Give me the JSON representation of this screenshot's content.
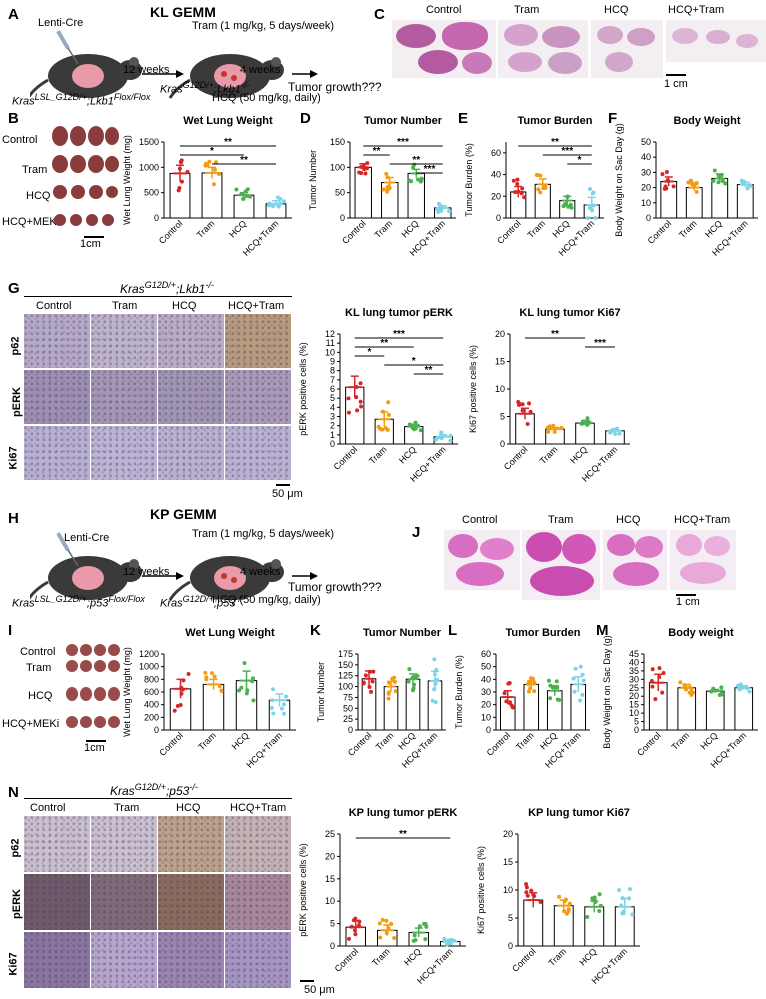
{
  "colors": {
    "control": "#d62728",
    "tram": "#f39c12",
    "hcq": "#4caf50",
    "hcq_tram": "#7fd3e8"
  },
  "panel_letters": [
    "A",
    "B",
    "C",
    "D",
    "E",
    "F",
    "G",
    "H",
    "I",
    "J",
    "K",
    "L",
    "M",
    "N"
  ],
  "kl": {
    "title": "KL GEMM",
    "lenti": "Lenti-Cre",
    "weeks12": "12 weeks",
    "tram_dose": "Tram (1 mg/kg, 5 days/week)",
    "weeks4": "4 weeks",
    "tumor_growth": "Tumor growth???",
    "genotype_left": "Kras",
    "genotype_left_sup": "LSL_G12D/+",
    "genotype_left_rest": ";Lkb1",
    "genotype_left_sup2": "Flox/Flox",
    "genotype_right": "Kras",
    "genotype_right_sup": "G12D/+",
    "genotype_right_rest": ";Lkb1",
    "genotype_right_sup2": "-/-",
    "hcq_dose": "HCQ (50 mg/kg, daily)",
    "photo_labels": [
      "Control",
      "Tram",
      "HCQ",
      "HCQ+MEKi"
    ],
    "scale_1cm": "1cm",
    "c_labels": [
      "Control",
      "Tram",
      "HCQ",
      "HCQ+Tram"
    ],
    "c_scale": "1 cm",
    "g_title_main": "Kras",
    "g_title_sup": "G12D/+",
    "g_title_rest": ";Lkb1",
    "g_title_sup2": "-/-",
    "g_cols": [
      "Control",
      "Tram",
      "HCQ",
      "HCQ+Tram"
    ],
    "g_rows": [
      "p62",
      "pERK",
      "Ki67"
    ],
    "g_scale": "50 μm"
  },
  "kp": {
    "title": "KP GEMM",
    "lenti": "Lenti-Cre",
    "weeks12": "12 weeks",
    "tram_dose": "Tram (1 mg/kg, 5 days/week)",
    "weeks4": "4 weeks",
    "tumor_growth": "Tumor growth???",
    "genotype_left": "Kras",
    "genotype_left_sup": "LSL_G12D/+",
    "genotype_left_rest": ";p53",
    "genotype_left_sup2": "Flox/Flox",
    "genotype_right": "Kras",
    "genotype_right_sup": "G12D/+",
    "genotype_right_rest": ";p53",
    "genotype_right_sup2": "-/-",
    "hcq_dose": "HCQ (50 mg/kg, daily)",
    "photo_labels": [
      "Control",
      "Tram",
      "HCQ",
      "HCQ+MEKi"
    ],
    "scale_1cm": "1cm",
    "j_labels": [
      "Control",
      "Tram",
      "HCQ",
      "HCQ+Tram"
    ],
    "j_scale": "1 cm",
    "n_title_main": "Kras",
    "n_title_sup": "G12D/+",
    "n_title_rest": ";p53",
    "n_title_sup2": "-/-",
    "n_cols": [
      "Control",
      "Tram",
      "HCQ",
      "HCQ+Tram"
    ],
    "n_rows": [
      "p62",
      "pERK",
      "Ki67"
    ],
    "n_scale": "50 μm"
  },
  "chart_data": [
    {
      "id": "B",
      "type": "bar",
      "title": "Wet Lung Weight",
      "ylabel": "Wet Lung Weight (mg)",
      "categories": [
        "Control",
        "Tram",
        "HCQ",
        "HCQ+Tram"
      ],
      "values": [
        880,
        890,
        450,
        280
      ],
      "errors": [
        160,
        110,
        50,
        60
      ],
      "ylim": [
        0,
        1500
      ],
      "yticks": [
        0,
        500,
        1000,
        1500
      ],
      "sig": [
        {
          "a": 0,
          "b": 3,
          "label": "**"
        },
        {
          "a": 0,
          "b": 2,
          "label": "*"
        },
        {
          "a": 1,
          "b": 3,
          "label": "**"
        }
      ]
    },
    {
      "id": "D",
      "type": "bar",
      "title": "Tumor Number",
      "ylabel": "Tumor Number",
      "categories": [
        "Control",
        "Tram",
        "HCQ",
        "HCQ+Tram"
      ],
      "values": [
        100,
        70,
        88,
        20
      ],
      "errors": [
        7,
        10,
        8,
        4
      ],
      "ylim": [
        0,
        150
      ],
      "yticks": [
        0,
        50,
        100,
        150
      ],
      "sig": [
        {
          "a": 0,
          "b": 3,
          "label": "***"
        },
        {
          "a": 0,
          "b": 1,
          "label": "**"
        },
        {
          "a": 1,
          "b": 3,
          "label": "**"
        },
        {
          "a": 2,
          "b": 3,
          "label": "***"
        }
      ]
    },
    {
      "id": "E",
      "type": "bar",
      "title": "Tumor Burden",
      "ylabel": "Tumor Burden (%)",
      "categories": [
        "Control",
        "Tram",
        "HCQ",
        "HCQ+Tram"
      ],
      "values": [
        24,
        31,
        16,
        12
      ],
      "errors": [
        5,
        5,
        4,
        7
      ],
      "ylim": [
        0,
        70
      ],
      "yticks": [
        0,
        20,
        40,
        60
      ],
      "sig": [
        {
          "a": 0,
          "b": 3,
          "label": "**"
        },
        {
          "a": 1,
          "b": 3,
          "label": "***"
        },
        {
          "a": 2,
          "b": 3,
          "label": "*"
        }
      ]
    },
    {
      "id": "F",
      "type": "bar",
      "title": "Body Weight",
      "ylabel": "Body Weight  on Sac Day (g)",
      "categories": [
        "Control",
        "Tram",
        "HCQ",
        "HCQ+Tram"
      ],
      "values": [
        24,
        20,
        26,
        22
      ],
      "errors": [
        3,
        2,
        3,
        1.5
      ],
      "ylim": [
        0,
        50
      ],
      "yticks": [
        0,
        10,
        20,
        30,
        40,
        50
      ],
      "sig": []
    },
    {
      "id": "G1",
      "type": "bar",
      "title": "KL lung tumor pERK",
      "ylabel": "pERK positive cells (%)",
      "categories": [
        "Control",
        "Tram",
        "HCQ",
        "HCQ+Tram"
      ],
      "values": [
        6.2,
        2.7,
        1.9,
        0.8
      ],
      "errors": [
        1.2,
        0.8,
        0.2,
        0.2
      ],
      "ylim": [
        0,
        12
      ],
      "yticks": [
        0,
        1,
        2,
        3,
        4,
        5,
        6,
        7,
        8,
        9,
        10,
        11,
        12
      ],
      "sig": [
        {
          "a": 0,
          "b": 3,
          "label": "***"
        },
        {
          "a": 0,
          "b": 2,
          "label": "**"
        },
        {
          "a": 0,
          "b": 1,
          "label": "*"
        },
        {
          "a": 1,
          "b": 3,
          "label": "*"
        },
        {
          "a": 2,
          "b": 3,
          "label": "**"
        }
      ]
    },
    {
      "id": "G2",
      "type": "bar",
      "title": "KL lung tumor Ki67",
      "ylabel": "Ki67 positive cells (%)",
      "categories": [
        "Control",
        "Tram",
        "HCQ",
        "HCQ+Tram"
      ],
      "values": [
        5.5,
        2.7,
        3.8,
        2.4
      ],
      "errors": [
        1,
        0.3,
        0.4,
        0.3
      ],
      "ylim": [
        0,
        20
      ],
      "yticks": [
        0,
        5,
        10,
        15,
        20
      ],
      "sig": [
        {
          "a": 0,
          "b": 2,
          "label": "**"
        },
        {
          "a": 2,
          "b": 3,
          "label": "***"
        }
      ]
    },
    {
      "id": "I",
      "type": "bar",
      "title": "Wet Lung Weight",
      "ylabel": "Wet Lung Weight (mg)",
      "categories": [
        "Control",
        "Tram",
        "HCQ",
        "HCQ+Tram"
      ],
      "values": [
        650,
        720,
        780,
        470
      ],
      "errors": [
        150,
        80,
        150,
        100
      ],
      "ylim": [
        0,
        1200
      ],
      "yticks": [
        0,
        200,
        400,
        600,
        800,
        1000,
        1200
      ],
      "sig": []
    },
    {
      "id": "K",
      "type": "bar",
      "title": "Tumor Number",
      "ylabel": "Tumor Number",
      "categories": [
        "Control",
        "Tram",
        "HCQ",
        "HCQ+Tram"
      ],
      "values": [
        118,
        100,
        117,
        113
      ],
      "errors": [
        18,
        12,
        12,
        22
      ],
      "ylim": [
        0,
        175
      ],
      "yticks": [
        0,
        25,
        50,
        75,
        100,
        125,
        150,
        175
      ],
      "sig": []
    },
    {
      "id": "L",
      "type": "bar",
      "title": "Tumor Burden",
      "ylabel": "Tumor Burden (%)",
      "categories": [
        "Control",
        "Tram",
        "HCQ",
        "HCQ+Tram"
      ],
      "values": [
        26,
        36,
        31,
        36
      ],
      "errors": [
        5,
        3,
        4,
        6
      ],
      "ylim": [
        0,
        60
      ],
      "yticks": [
        0,
        10,
        20,
        30,
        40,
        50,
        60
      ],
      "sig": []
    },
    {
      "id": "M",
      "type": "bar",
      "title": "Body weight",
      "ylabel": "Body Weight  on Sac Day (g)",
      "categories": [
        "Control",
        "Tram",
        "HCQ",
        "HCQ+Tram"
      ],
      "values": [
        28,
        25,
        23,
        25
      ],
      "errors": [
        5,
        2,
        1,
        1
      ],
      "ylim": [
        0,
        45
      ],
      "yticks": [
        0,
        5,
        10,
        15,
        20,
        25,
        30,
        35,
        40,
        45
      ],
      "sig": []
    },
    {
      "id": "N1",
      "type": "bar",
      "title": "KP lung tumor pERK",
      "ylabel": "pERK positive cells (%)",
      "categories": [
        "Control",
        "Tram",
        "HCQ",
        "HCQ+Tram"
      ],
      "values": [
        4.2,
        3.5,
        3.0,
        1.0
      ],
      "errors": [
        1.5,
        1.2,
        1.0,
        0.4
      ],
      "ylim": [
        0,
        25
      ],
      "yticks": [
        0,
        5,
        10,
        15,
        20,
        25
      ],
      "sig": [
        {
          "a": 0,
          "b": 3,
          "label": "**"
        }
      ]
    },
    {
      "id": "N2",
      "type": "bar",
      "title": "KP lung tumor Ki67",
      "ylabel": "Ki67 positive cells (%)",
      "categories": [
        "Control",
        "Tram",
        "HCQ",
        "HCQ+Tram"
      ],
      "values": [
        8.2,
        7.2,
        7.0,
        7.0
      ],
      "errors": [
        1.3,
        1.0,
        1.0,
        1.5
      ],
      "ylim": [
        0,
        20
      ],
      "yticks": [
        0,
        5,
        10,
        15,
        20
      ],
      "sig": []
    }
  ]
}
